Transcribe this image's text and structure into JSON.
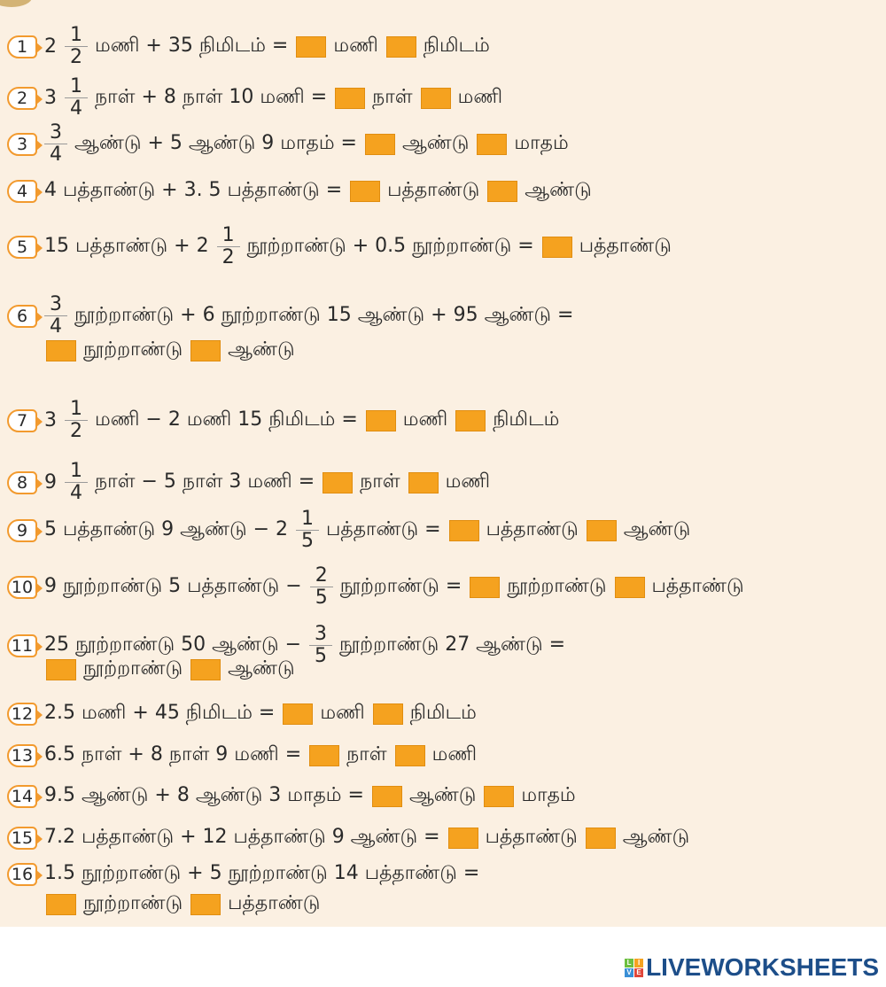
{
  "problems": [
    {
      "num": "1",
      "lines": [
        [
          {
            "t": "text",
            "v": "2"
          },
          {
            "t": "frac",
            "n": "1",
            "d": "2"
          },
          {
            "t": "text",
            "v": "மணி + 35 நிமிடம் ="
          },
          {
            "t": "box"
          },
          {
            "t": "text",
            "v": "மணி"
          },
          {
            "t": "box"
          },
          {
            "t": "text",
            "v": "நிமிடம்"
          }
        ]
      ]
    },
    {
      "num": "2",
      "lines": [
        [
          {
            "t": "text",
            "v": "3"
          },
          {
            "t": "frac",
            "n": "1",
            "d": "4"
          },
          {
            "t": "text",
            "v": "நாள் + 8 நாள் 10 மணி ="
          },
          {
            "t": "box"
          },
          {
            "t": "text",
            "v": "நாள்"
          },
          {
            "t": "box"
          },
          {
            "t": "text",
            "v": "மணி"
          }
        ]
      ]
    },
    {
      "num": "3",
      "lines": [
        [
          {
            "t": "frac",
            "n": "3",
            "d": "4"
          },
          {
            "t": "text",
            "v": "ஆண்டு + 5 ஆண்டு 9 மாதம் ="
          },
          {
            "t": "box"
          },
          {
            "t": "text",
            "v": "ஆண்டு"
          },
          {
            "t": "box"
          },
          {
            "t": "text",
            "v": "மாதம்"
          }
        ]
      ]
    },
    {
      "num": "4",
      "lines": [
        [
          {
            "t": "text",
            "v": "4 பத்தாண்டு + 3. 5 பத்தாண்டு ="
          },
          {
            "t": "box"
          },
          {
            "t": "text",
            "v": "பத்தாண்டு"
          },
          {
            "t": "box"
          },
          {
            "t": "text",
            "v": "ஆண்டு"
          }
        ]
      ]
    },
    {
      "num": "5",
      "lines": [
        [
          {
            "t": "text",
            "v": "15 பத்தாண்டு + 2"
          },
          {
            "t": "frac",
            "n": "1",
            "d": "2"
          },
          {
            "t": "text",
            "v": "நூற்றாண்டு + 0.5 நூற்றாண்டு ="
          },
          {
            "t": "box"
          },
          {
            "t": "text",
            "v": "பத்தாண்டு"
          }
        ]
      ]
    },
    {
      "num": "6",
      "lines": [
        [
          {
            "t": "frac",
            "n": "3",
            "d": "4"
          },
          {
            "t": "text",
            "v": "நூற்றாண்டு + 6 நூற்றாண்டு 15 ஆண்டு + 95 ஆண்டு ="
          }
        ],
        [
          {
            "t": "box"
          },
          {
            "t": "text",
            "v": "நூற்றாண்டு"
          },
          {
            "t": "box"
          },
          {
            "t": "text",
            "v": "ஆண்டு"
          }
        ]
      ]
    },
    {
      "num": "7",
      "lines": [
        [
          {
            "t": "text",
            "v": "3"
          },
          {
            "t": "frac",
            "n": "1",
            "d": "2"
          },
          {
            "t": "text",
            "v": "மணி − 2 மணி 15 நிமிடம் ="
          },
          {
            "t": "box"
          },
          {
            "t": "text",
            "v": "மணி"
          },
          {
            "t": "box"
          },
          {
            "t": "text",
            "v": "நிமிடம்"
          }
        ]
      ]
    },
    {
      "num": "8",
      "lines": [
        [
          {
            "t": "text",
            "v": "9"
          },
          {
            "t": "frac",
            "n": "1",
            "d": "4"
          },
          {
            "t": "text",
            "v": "நாள் − 5 நாள் 3 மணி ="
          },
          {
            "t": "box"
          },
          {
            "t": "text",
            "v": "நாள்"
          },
          {
            "t": "box"
          },
          {
            "t": "text",
            "v": "மணி"
          }
        ]
      ]
    },
    {
      "num": "9",
      "lines": [
        [
          {
            "t": "text",
            "v": "5 பத்தாண்டு 9 ஆண்டு − 2"
          },
          {
            "t": "frac",
            "n": "1",
            "d": "5"
          },
          {
            "t": "text",
            "v": "பத்தாண்டு ="
          },
          {
            "t": "box"
          },
          {
            "t": "text",
            "v": "பத்தாண்டு"
          },
          {
            "t": "box"
          },
          {
            "t": "text",
            "v": "ஆண்டு"
          }
        ]
      ]
    },
    {
      "num": "10",
      "lines": [
        [
          {
            "t": "text",
            "v": "9 நூற்றாண்டு 5 பத்தாண்டு −"
          },
          {
            "t": "frac",
            "n": "2",
            "d": "5"
          },
          {
            "t": "text",
            "v": "நூற்றாண்டு ="
          },
          {
            "t": "box"
          },
          {
            "t": "text",
            "v": "நூற்றாண்டு"
          },
          {
            "t": "box"
          },
          {
            "t": "text",
            "v": "பத்தாண்டு"
          }
        ]
      ]
    },
    {
      "num": "11",
      "lines": [
        [
          {
            "t": "text",
            "v": "25 நூற்றாண்டு 50 ஆண்டு −"
          },
          {
            "t": "frac",
            "n": "3",
            "d": "5"
          },
          {
            "t": "text",
            "v": "நூற்றாண்டு 27 ஆண்டு ="
          }
        ],
        [
          {
            "t": "box"
          },
          {
            "t": "text",
            "v": "நூற்றாண்டு"
          },
          {
            "t": "box"
          },
          {
            "t": "text",
            "v": "ஆண்டு"
          }
        ]
      ]
    },
    {
      "num": "12",
      "lines": [
        [
          {
            "t": "text",
            "v": "2.5 மணி + 45 நிமிடம் ="
          },
          {
            "t": "box"
          },
          {
            "t": "text",
            "v": "மணி"
          },
          {
            "t": "box"
          },
          {
            "t": "text",
            "v": "நிமிடம்"
          }
        ]
      ]
    },
    {
      "num": "13",
      "lines": [
        [
          {
            "t": "text",
            "v": "6.5 நாள் + 8 நாள் 9 மணி ="
          },
          {
            "t": "box"
          },
          {
            "t": "text",
            "v": "நாள்"
          },
          {
            "t": "box"
          },
          {
            "t": "text",
            "v": "மணி"
          }
        ]
      ]
    },
    {
      "num": "14",
      "lines": [
        [
          {
            "t": "text",
            "v": "9.5 ஆண்டு + 8 ஆண்டு 3 மாதம் ="
          },
          {
            "t": "box"
          },
          {
            "t": "text",
            "v": "ஆண்டு"
          },
          {
            "t": "box"
          },
          {
            "t": "text",
            "v": "மாதம்"
          }
        ]
      ]
    },
    {
      "num": "15",
      "lines": [
        [
          {
            "t": "text",
            "v": "7.2 பத்தாண்டு + 12 பத்தாண்டு 9 ஆண்டு ="
          },
          {
            "t": "box"
          },
          {
            "t": "text",
            "v": "பத்தாண்டு"
          },
          {
            "t": "box"
          },
          {
            "t": "text",
            "v": "ஆண்டு"
          }
        ]
      ]
    },
    {
      "num": "16",
      "lines": [
        [
          {
            "t": "text",
            "v": "1.5 நூற்றாண்டு + 5 நூற்றாண்டு 14 பத்தாண்டு ="
          }
        ],
        [
          {
            "t": "box"
          },
          {
            "t": "text",
            "v": "நூற்றாண்டு"
          },
          {
            "t": "box"
          },
          {
            "t": "text",
            "v": "பத்தாண்டு"
          }
        ]
      ]
    }
  ],
  "colors": {
    "answer_box": "#f5a21f",
    "badge_outline": "#f29a2e",
    "background": "#fbf0e2",
    "logo": "#1d4e89"
  },
  "logo": {
    "text": "LIVEWORKSHEETS",
    "mark": [
      "L",
      "I",
      "V",
      "E"
    ]
  }
}
